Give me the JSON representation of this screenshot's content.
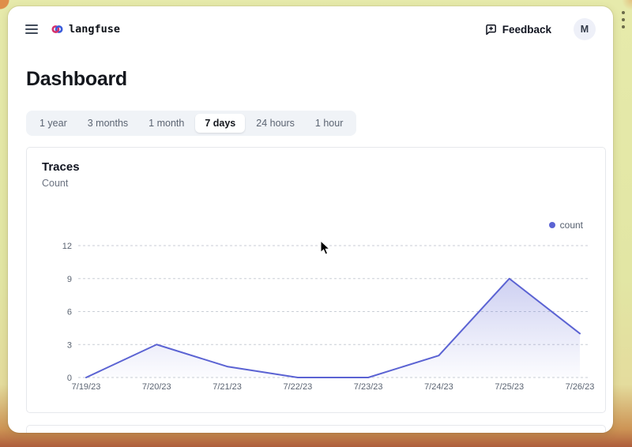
{
  "header": {
    "brand": "langfuse",
    "feedback_label": "Feedback",
    "avatar_initial": "M"
  },
  "page": {
    "title": "Dashboard"
  },
  "time_tabs": {
    "items": [
      {
        "label": "1 year",
        "selected": false
      },
      {
        "label": "3 months",
        "selected": false
      },
      {
        "label": "1 month",
        "selected": false
      },
      {
        "label": "7 days",
        "selected": true
      },
      {
        "label": "24 hours",
        "selected": false
      },
      {
        "label": "1 hour",
        "selected": false
      }
    ]
  },
  "traces_card": {
    "title": "Traces",
    "subtitle": "Count",
    "legend": {
      "label": "count",
      "color": "#5b63d3"
    }
  },
  "chart_data": {
    "type": "area",
    "title": "Traces",
    "ylabel": "Count",
    "categories": [
      "7/19/23",
      "7/20/23",
      "7/21/23",
      "7/22/23",
      "7/23/23",
      "7/24/23",
      "7/25/23",
      "7/26/23"
    ],
    "series": [
      {
        "name": "count",
        "values": [
          0,
          3,
          1,
          0,
          0,
          2,
          9,
          4
        ],
        "color": "#5b63d3"
      }
    ],
    "ylim": [
      0,
      12
    ],
    "yticks": [
      0,
      3,
      6,
      9,
      12
    ],
    "grid": "dashed-horizontal",
    "legend_position": "top-right"
  },
  "colors": {
    "accent": "#5b63d3",
    "grid_line": "#c9ced6",
    "axis_text": "#5b6472",
    "tab_bar_bg": "#f0f3f7",
    "frame": "#e2e6a4",
    "frame_bottom": "#ae5d3c"
  }
}
